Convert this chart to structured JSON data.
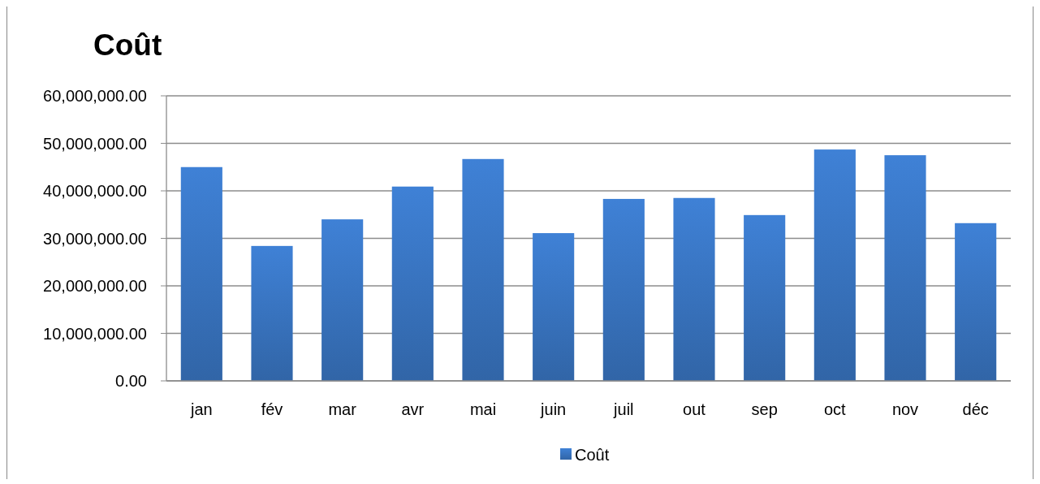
{
  "chart_data": {
    "type": "bar",
    "title": "Coût",
    "categories": [
      "jan",
      "fév",
      "mar",
      "avr",
      "mai",
      "juin",
      "juil",
      "out",
      "sep",
      "oct",
      "nov",
      "déc"
    ],
    "series": [
      {
        "name": "Coût",
        "color": "#3a76c4",
        "values": [
          45000000,
          28400000,
          34000000,
          40900000,
          46700000,
          31100000,
          38300000,
          38500000,
          34900000,
          48700000,
          47500000,
          33200000
        ]
      }
    ],
    "ylim": [
      0,
      60000000
    ],
    "yticks": [
      {
        "value": 0,
        "label": "0.00"
      },
      {
        "value": 10000000,
        "label": "10,000,000.00"
      },
      {
        "value": 20000000,
        "label": "20,000,000.00"
      },
      {
        "value": 30000000,
        "label": "30,000,000.00"
      },
      {
        "value": 40000000,
        "label": "40,000,000.00"
      },
      {
        "value": 50000000,
        "label": "50,000,000.00"
      },
      {
        "value": 60000000,
        "label": "60,000,000.00"
      }
    ],
    "grid": "y",
    "legend": "bottom"
  }
}
